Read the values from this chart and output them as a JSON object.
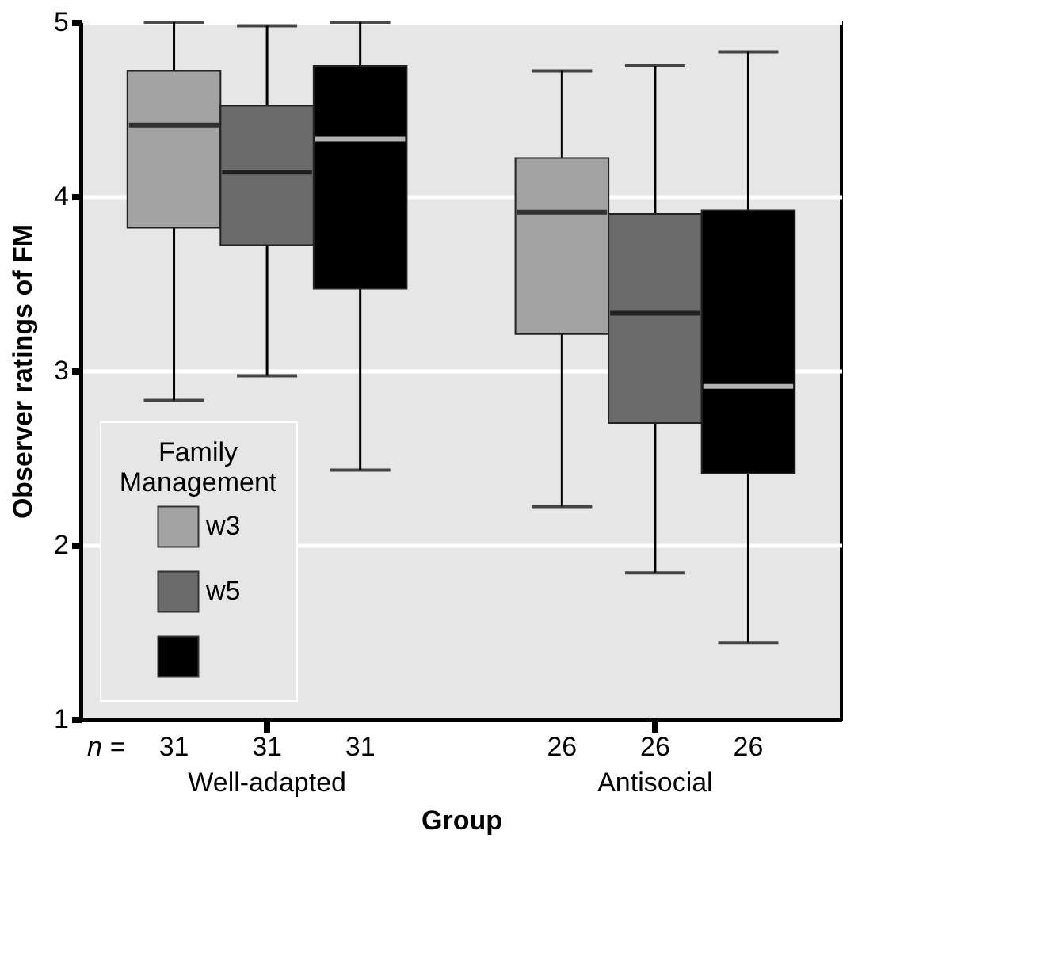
{
  "chart_data": {
    "type": "box",
    "xlabel": "Group",
    "ylabel": "Observer ratings of FM",
    "legend_title": "Family Management",
    "categories": [
      "Well-adapted",
      "Antisocial"
    ],
    "series": [
      {
        "name": "w3",
        "color": "#a3a3a3",
        "boxes": [
          {
            "low": 2.83,
            "q1": 3.82,
            "median": 4.41,
            "q3": 4.72,
            "high": 5.0
          },
          {
            "low": 2.22,
            "q1": 3.21,
            "median": 3.91,
            "q3": 4.22,
            "high": 4.72
          }
        ]
      },
      {
        "name": "w5",
        "color": "#6b6b6b",
        "boxes": [
          {
            "low": 2.97,
            "q1": 3.72,
            "median": 4.14,
            "q3": 4.52,
            "high": 4.98
          },
          {
            "low": 1.84,
            "q1": 2.7,
            "median": 3.33,
            "q3": 3.9,
            "high": 4.75
          }
        ]
      },
      {
        "color": "#000000",
        "boxes": [
          {
            "low": 2.43,
            "q1": 3.47,
            "median": 4.33,
            "q3": 4.75,
            "high": 5.0
          },
          {
            "low": 1.44,
            "q1": 2.41,
            "median": 2.91,
            "q3": 3.92,
            "high": 4.83
          }
        ]
      }
    ],
    "ylim": [
      1,
      5
    ],
    "yticks": [
      1,
      2,
      3,
      4,
      5
    ],
    "grid": "y",
    "legend": "bottom left",
    "annotations": [
      "n =",
      "31",
      "31",
      "31",
      "26",
      "26",
      "26"
    ]
  }
}
